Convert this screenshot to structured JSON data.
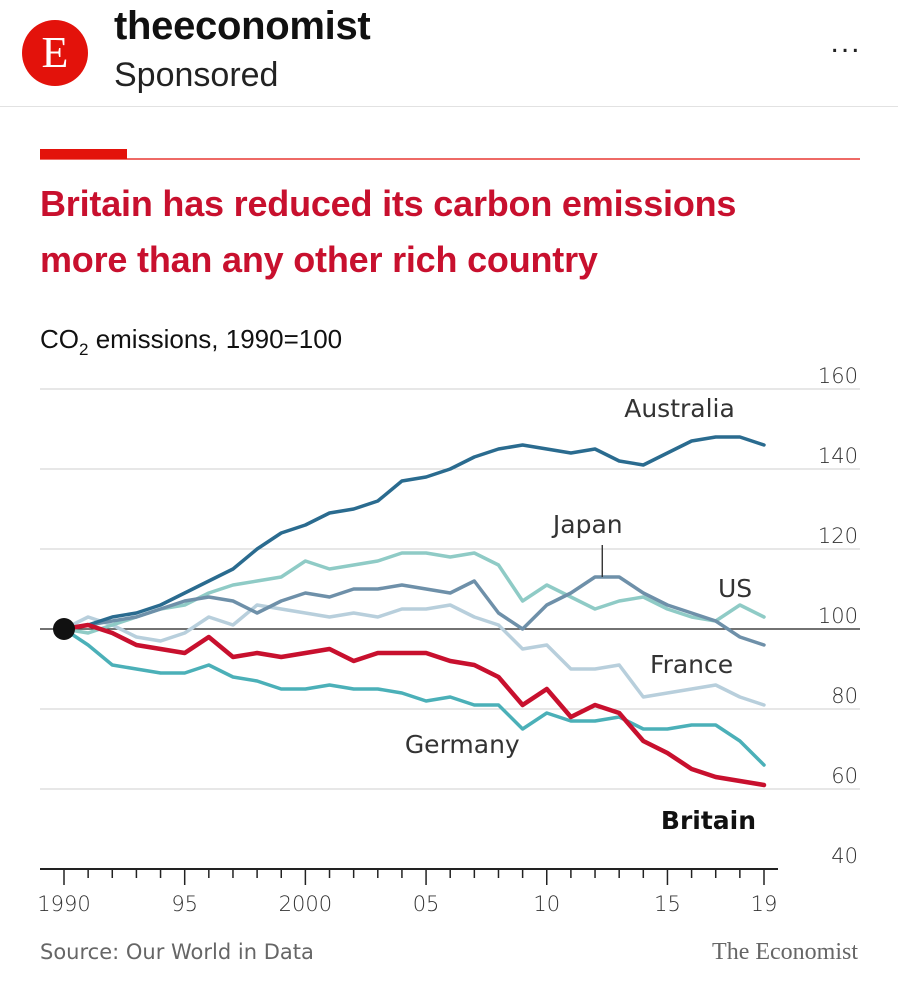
{
  "post": {
    "avatar_letter": "E",
    "account_name": "theeconomist",
    "sponsored_label": "Sponsored",
    "more_icon": "more-horizontal-icon",
    "more_label": "..."
  },
  "colors": {
    "brand_red": "#e3120b",
    "title_red": "#c8102e",
    "australia": "#2a6b8f",
    "japan": "#6e90a9",
    "us": "#8fcbc6",
    "france": "#b8cfdc",
    "germany": "#4bb0b8",
    "britain": "#c8102e"
  },
  "chart_data": {
    "type": "line",
    "title": "Britain has reduced its carbon emissions more than any other rich country",
    "title_lines": [
      "Britain has reduced its carbon emissions",
      "more than any other rich country"
    ],
    "subtitle_prefix": "CO",
    "subtitle_sub": "2",
    "subtitle_suffix": " emissions, 1990=100",
    "x": [
      1990,
      1991,
      1992,
      1993,
      1994,
      1995,
      1996,
      1997,
      1998,
      1999,
      2000,
      2001,
      2002,
      2003,
      2004,
      2005,
      2006,
      2007,
      2008,
      2009,
      2010,
      2011,
      2012,
      2013,
      2014,
      2015,
      2016,
      2017,
      2018,
      2019
    ],
    "xlim": [
      1990,
      2019
    ],
    "x_ticks": [
      {
        "value": 1990,
        "label": "1990"
      },
      {
        "value": 1995,
        "label": "95"
      },
      {
        "value": 2000,
        "label": "2000"
      },
      {
        "value": 2005,
        "label": "05"
      },
      {
        "value": 2010,
        "label": "10"
      },
      {
        "value": 2015,
        "label": "15"
      },
      {
        "value": 2019,
        "label": "19"
      }
    ],
    "ylim": [
      40,
      160
    ],
    "y_ticks": [
      {
        "value": 160,
        "label": "160"
      },
      {
        "value": 140,
        "label": "140"
      },
      {
        "value": 120,
        "label": "120"
      },
      {
        "value": 100,
        "label": "100"
      },
      {
        "value": 80,
        "label": "80"
      },
      {
        "value": 60,
        "label": "60"
      },
      {
        "value": 40,
        "label": "40"
      }
    ],
    "baseline": 100,
    "grid": true,
    "series": [
      {
        "name": "France",
        "color": "#b8cfdc",
        "bold": false,
        "values": [
          100,
          103,
          101,
          98,
          97,
          99,
          103,
          101,
          106,
          105,
          104,
          103,
          104,
          103,
          105,
          105,
          106,
          103,
          101,
          95,
          96,
          90,
          90,
          91,
          83,
          84,
          85,
          86,
          83,
          81
        ]
      },
      {
        "name": "US",
        "color": "#8fcbc6",
        "bold": false,
        "values": [
          100,
          99,
          101,
          103,
          105,
          106,
          109,
          111,
          112,
          113,
          117,
          115,
          116,
          117,
          119,
          119,
          118,
          119,
          116,
          107,
          111,
          108,
          105,
          107,
          108,
          105,
          103,
          102,
          106,
          103
        ]
      },
      {
        "name": "Japan",
        "color": "#6e90a9",
        "bold": false,
        "values": [
          100,
          101,
          102,
          103,
          105,
          107,
          108,
          107,
          104,
          107,
          109,
          108,
          110,
          110,
          111,
          110,
          109,
          112,
          104,
          100,
          106,
          109,
          113,
          113,
          109,
          106,
          104,
          102,
          98,
          96
        ]
      },
      {
        "name": "Germany",
        "color": "#4bb0b8",
        "bold": false,
        "values": [
          100,
          96,
          91,
          90,
          89,
          89,
          91,
          88,
          87,
          85,
          85,
          86,
          85,
          85,
          84,
          82,
          83,
          81,
          81,
          75,
          79,
          77,
          77,
          78,
          75,
          75,
          76,
          76,
          72,
          66
        ]
      },
      {
        "name": "Australia",
        "color": "#2a6b8f",
        "bold": false,
        "values": [
          100,
          101,
          103,
          104,
          106,
          109,
          112,
          115,
          120,
          124,
          126,
          129,
          130,
          132,
          137,
          138,
          140,
          143,
          145,
          146,
          145,
          144,
          145,
          142,
          141,
          144,
          147,
          148,
          148,
          146
        ]
      },
      {
        "name": "Britain",
        "color": "#c8102e",
        "bold": true,
        "values": [
          100,
          101,
          99,
          96,
          95,
          94,
          98,
          93,
          94,
          93,
          94,
          95,
          92,
          94,
          94,
          94,
          92,
          91,
          88,
          81,
          85,
          78,
          81,
          79,
          72,
          69,
          65,
          63,
          62,
          61
        ]
      }
    ],
    "labels": [
      {
        "series": "Australia",
        "text": "Australia",
        "x": 2015.5,
        "y": 153
      },
      {
        "series": "Japan",
        "text": "Japan",
        "x": 2011.7,
        "y": 124
      },
      {
        "series": "US",
        "text": "US",
        "x": 2017.8,
        "y": 108
      },
      {
        "series": "France",
        "text": "France",
        "x": 2016,
        "y": 89
      },
      {
        "series": "Germany",
        "text": "Germany",
        "x": 2006.5,
        "y": 69
      },
      {
        "series": "Britain",
        "text": "Britain",
        "x": 2016.7,
        "y": 50
      }
    ],
    "japan_leader": {
      "x": 2012.3,
      "y_from": 121,
      "y_to": 113
    },
    "source": "Source: Our World in Data",
    "brand": "The Economist"
  }
}
